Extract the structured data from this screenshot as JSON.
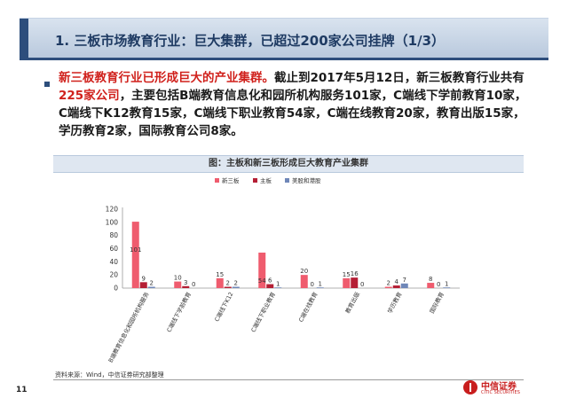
{
  "header": {
    "title": "1. 三板市场教育行业：巨大集群，已超过200家公司挂牌（1/3）"
  },
  "paragraph": {
    "part1": "新三板教育行业已形成巨大的产业集群。",
    "part2": "截止到2017年5月12日，新三板教育行业共有",
    "part3": "225家公司",
    "part4": "，主要包括B端教育信息化和园所机构服务101家，C端线下学前教育10家，C端线下K12教育15家，C端线下职业教育54家，C端在线教育20家，教育出版15家，学历教育2家，国际教育公司8家。"
  },
  "chart_data": {
    "type": "bar",
    "title": "图：主板和新三板形成巨大教育产业集群",
    "categories": [
      "B端教育信息化和园所机构服务",
      "C端线下学前教育",
      "C端线下K12",
      "C端线下职业教育",
      "C端在线教育",
      "教育出版",
      "学历教育",
      "国际教育"
    ],
    "series": [
      {
        "name": "新三板",
        "values": [
          101,
          10,
          15,
          54,
          20,
          15,
          2,
          8
        ],
        "color": "#ef5c6e"
      },
      {
        "name": "主板",
        "values": [
          9,
          3,
          2,
          6,
          0,
          16,
          4,
          0
        ],
        "color": "#b51f35"
      },
      {
        "name": "美股和港股",
        "values": [
          2,
          0,
          2,
          1,
          1,
          0,
          7,
          1
        ],
        "color": "#6f87b8"
      }
    ],
    "yticks": [
      0,
      20,
      40,
      60,
      80,
      100,
      120
    ],
    "ylim": [
      0,
      120
    ],
    "legend_position": "top-center",
    "grid": false
  },
  "footer": {
    "source": "资料来源：Wind，中信证券研究部整理",
    "page_number": "11",
    "logo_cn": "中信证券",
    "logo_en": "CITIC SECURITIES"
  }
}
